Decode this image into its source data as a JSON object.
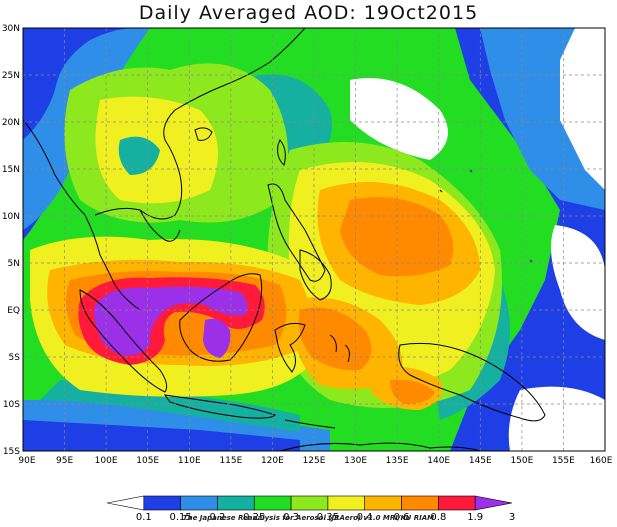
{
  "title": "Daily Averaged AOD: 19Oct2015",
  "credit": "The Japanese Reanalysis for Aerosol (JRAero) v1.0 MRI/KU RIAM",
  "map": {
    "lon_range": [
      90,
      160
    ],
    "lat_range": [
      -15,
      30
    ],
    "lon_ticks": [
      "90E",
      "95E",
      "100E",
      "105E",
      "110E",
      "115E",
      "120E",
      "125E",
      "130E",
      "135E",
      "140E",
      "145E",
      "150E",
      "155E",
      "160E"
    ],
    "lat_ticks": [
      "30N",
      "25N",
      "20N",
      "15N",
      "10N",
      "5N",
      "EQ",
      "5S",
      "10S",
      "15S"
    ],
    "gridlines": true,
    "overlay": "coastlines"
  },
  "colorbar": {
    "labels": [
      "0.1",
      "0.15",
      "0.2",
      "0.25",
      "0.3",
      "0.35",
      "0.4",
      "0.6",
      "0.8",
      "1.9",
      "3"
    ],
    "colors": [
      "#ffffff",
      "#1f3fe6",
      "#2f8fe8",
      "#16b0a0",
      "#22dd22",
      "#8de81e",
      "#f0f020",
      "#ffb400",
      "#ff8a00",
      "#ff1a3c",
      "#9b30e8"
    ]
  }
}
